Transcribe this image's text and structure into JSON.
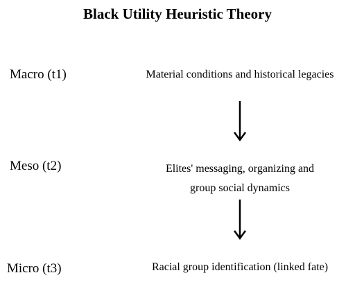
{
  "title": "Black Utility Heuristic Theory",
  "levels": [
    {
      "label": "Macro (t1)",
      "lines": [
        "Material conditions and historical legacies"
      ]
    },
    {
      "label": "Meso (t2)",
      "lines": [
        "Elites' messaging, organizing and",
        "group social dynamics"
      ]
    },
    {
      "label": "Micro (t3)",
      "lines": [
        "Racial group identification (linked fate)"
      ]
    }
  ],
  "arrow_icon": "arrow-down-icon",
  "colors": {
    "text": "#000000",
    "background": "#ffffff"
  }
}
